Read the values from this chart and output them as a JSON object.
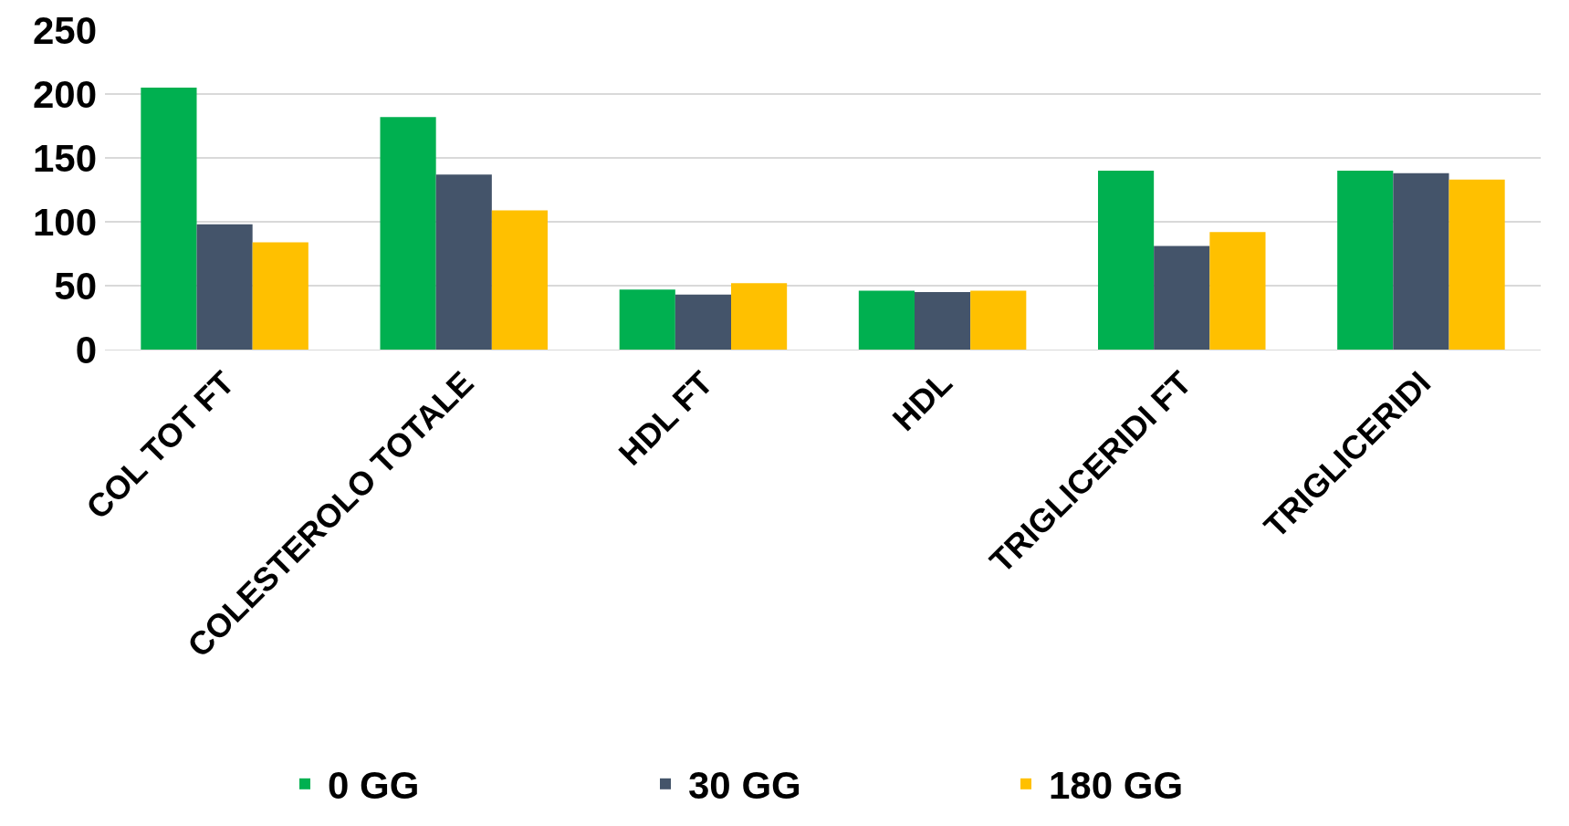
{
  "chart_data": {
    "type": "bar",
    "categories": [
      "COL TOT FT",
      "COLESTEROLO TOTALE",
      "HDL FT",
      "HDL",
      "TRIGLICERIDI FT",
      "TRIGLICERIDI"
    ],
    "series": [
      {
        "name": "0 GG",
        "color": "#00b050",
        "values": [
          205,
          182,
          47,
          46,
          140,
          140
        ]
      },
      {
        "name": "30 GG",
        "color": "#44546a",
        "values": [
          98,
          137,
          43,
          45,
          81,
          138
        ]
      },
      {
        "name": "180 GG",
        "color": "#ffc000",
        "values": [
          84,
          109,
          52,
          46,
          92,
          133
        ]
      }
    ],
    "ylim": [
      0,
      250
    ],
    "yticks": [
      0,
      50,
      100,
      150,
      200,
      250
    ],
    "grid": "y",
    "legend": "bottom"
  }
}
